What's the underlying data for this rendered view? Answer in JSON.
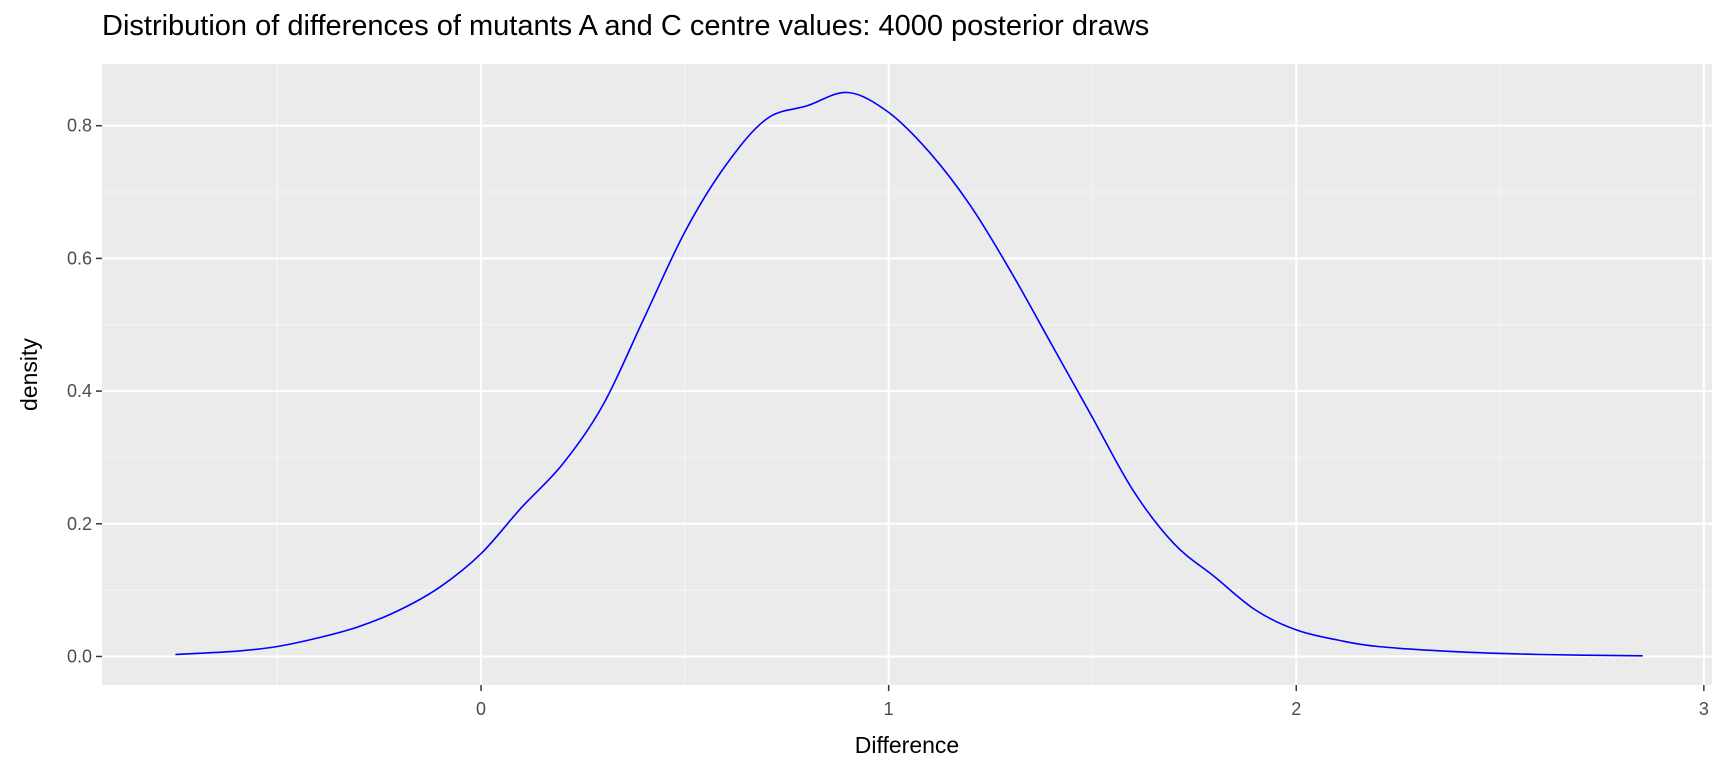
{
  "chart_data": {
    "type": "line",
    "title": "Distribution of differences of mutants A and C centre values: 4000 posterior draws",
    "xlabel": "Difference",
    "ylabel": "density",
    "xlim": [
      -0.93,
      3.02
    ],
    "ylim": [
      -0.043,
      0.893
    ],
    "x_ticks": [
      0,
      1,
      2,
      3
    ],
    "x_tick_labels": [
      "0",
      "1",
      "2",
      "3"
    ],
    "y_ticks": [
      0.0,
      0.2,
      0.4,
      0.6,
      0.8
    ],
    "y_tick_labels": [
      "0.0",
      "0.2",
      "0.4",
      "0.6",
      "0.8"
    ],
    "grid": true,
    "background": "#ebebeb",
    "line_color": "#0000ff",
    "series": [
      {
        "x": [
          -0.75,
          -0.6,
          -0.5,
          -0.4,
          -0.3,
          -0.2,
          -0.1,
          0.0,
          0.1,
          0.2,
          0.3,
          0.4,
          0.5,
          0.6,
          0.7,
          0.8,
          0.9,
          1.0,
          1.1,
          1.2,
          1.3,
          1.4,
          1.5,
          1.6,
          1.7,
          1.8,
          1.9,
          2.0,
          2.1,
          2.2,
          2.4,
          2.6,
          2.85
        ],
        "y": [
          0.003,
          0.008,
          0.015,
          0.028,
          0.045,
          0.07,
          0.105,
          0.155,
          0.225,
          0.29,
          0.38,
          0.51,
          0.64,
          0.74,
          0.81,
          0.83,
          0.85,
          0.82,
          0.76,
          0.68,
          0.58,
          0.47,
          0.36,
          0.25,
          0.17,
          0.12,
          0.07,
          0.04,
          0.025,
          0.015,
          0.007,
          0.003,
          0.001
        ]
      }
    ]
  }
}
